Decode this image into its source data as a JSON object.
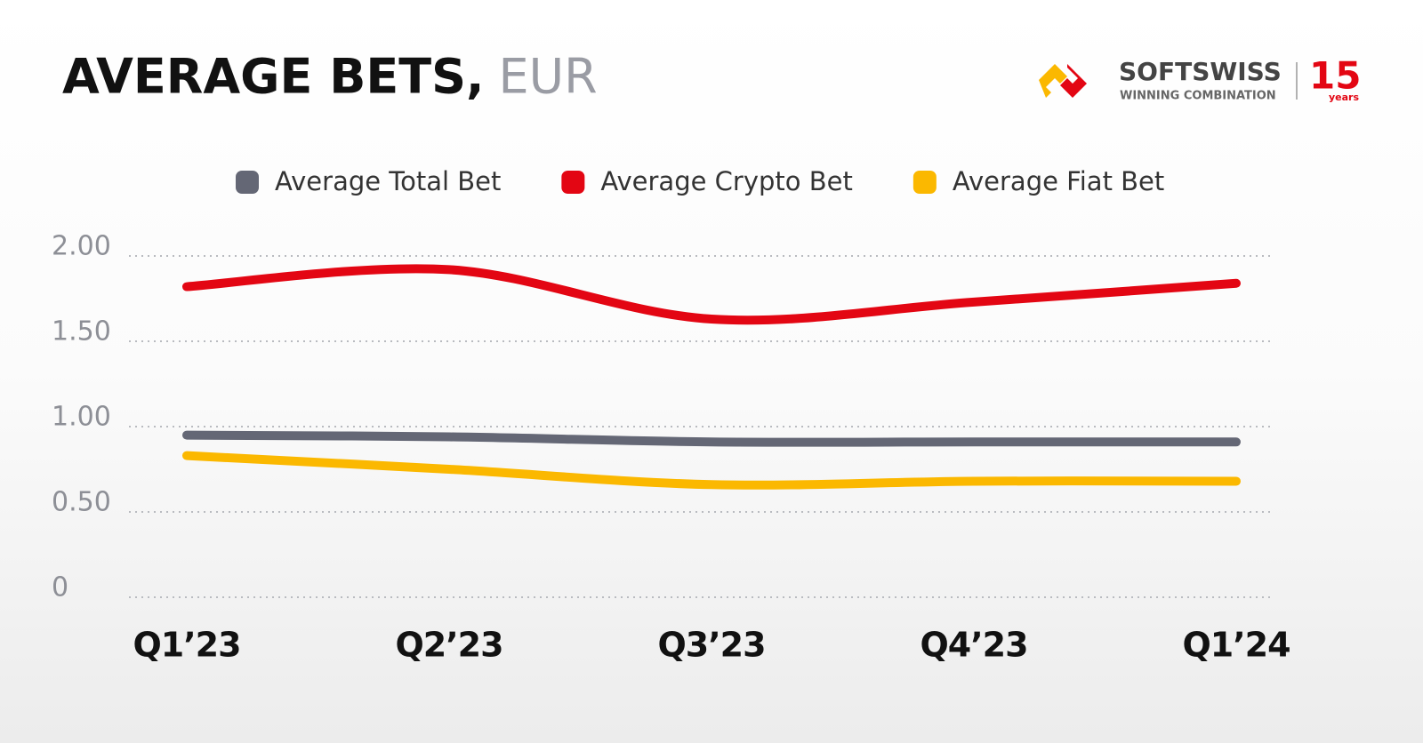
{
  "chart_data": {
    "type": "line",
    "title": "AVERAGE BETS,",
    "title_unit": "EUR",
    "brand": {
      "name": "SOFTSWISS",
      "tagline": "WINNING COMBINATION",
      "anniversary": "15",
      "anniversary_unit": "years"
    },
    "categories": [
      "Q1’23",
      "Q2’23",
      "Q3’23",
      "Q4’23",
      "Q1’24"
    ],
    "series": [
      {
        "name": "Average Total Bet",
        "color": "#646775",
        "values": [
          0.95,
          0.94,
          0.91,
          0.91,
          0.91
        ]
      },
      {
        "name": "Average Crypto Bet",
        "color": "#e30613",
        "values": [
          1.82,
          1.92,
          1.63,
          1.73,
          1.84
        ]
      },
      {
        "name": "Average Fiat Bet",
        "color": "#fbb800",
        "values": [
          0.83,
          0.75,
          0.66,
          0.68,
          0.68
        ]
      }
    ],
    "ylim": [
      0,
      2
    ],
    "yticks": [
      0,
      {
        "value": 0.5,
        "label": "0.50"
      },
      {
        "value": 1,
        "label": "1.00"
      },
      {
        "value": 1.5,
        "label": "1.50"
      },
      {
        "value": 2,
        "label": "2.00"
      }
    ],
    "grid": true
  }
}
